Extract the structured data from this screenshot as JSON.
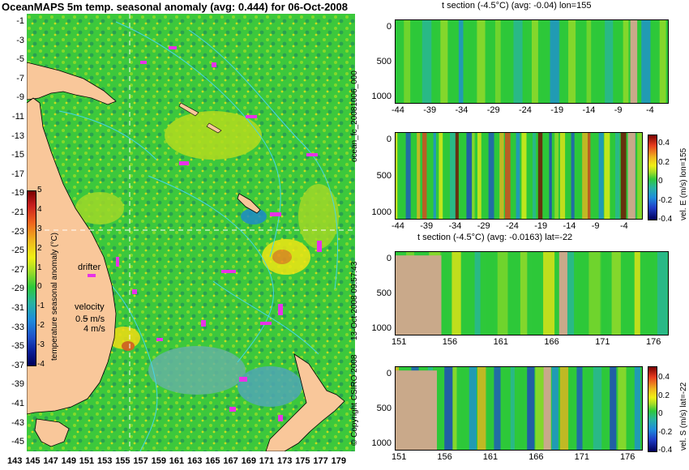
{
  "map": {
    "title": "OceanMAPS 5m temp. seasonal anomaly (avg: 0.444) for 06-Oct-2008",
    "lat_ticks": [
      "-1",
      "-3",
      "-5",
      "-7",
      "-9",
      "-11",
      "-13",
      "-15",
      "-17",
      "-19",
      "-21",
      "-23",
      "-25",
      "-27",
      "-29",
      "-31",
      "-33",
      "-35",
      "-37",
      "-39",
      "-41",
      "-43",
      "-45"
    ],
    "lon_ticks": [
      "143",
      "145",
      "147",
      "149",
      "151",
      "153",
      "155",
      "157",
      "159",
      "161",
      "163",
      "165",
      "167",
      "169",
      "171",
      "173",
      "175",
      "177",
      "179"
    ],
    "colorbar": {
      "label": "temperature seasonal anomaly (°C)",
      "ticks": [
        "5",
        "4",
        "3",
        "2",
        "1",
        "0",
        "-1",
        "-2",
        "-3",
        "-4"
      ]
    },
    "drifter_label": "drifter",
    "velocity_label": "velocity",
    "velocity_scale": "0.5 m/s",
    "velocity_scale2": "4 m/s",
    "colors": {
      "land": "#f9c79a",
      "ocean": "#2ec83a",
      "contour": "#46d6e8",
      "drifter": "#e832e8"
    }
  },
  "panels": [
    {
      "title": "t section (-4.5°C) (avg: -0.04) lon=155",
      "x_ticks": [
        "-44",
        "-39",
        "-34",
        "-29",
        "-24",
        "-19",
        "-14",
        "-9",
        "-4"
      ],
      "y_ticks": [
        "0",
        "500",
        "1000"
      ]
    },
    {
      "title": "",
      "x_ticks": [
        "-44",
        "-39",
        "-34",
        "-29",
        "-24",
        "-19",
        "-14",
        "-9",
        "-4"
      ],
      "y_ticks": [
        "0",
        "500",
        "1000"
      ],
      "side_label": "vel. E (m/s) lon=155",
      "cb_ticks": [
        "0.4",
        "0.2",
        "0",
        "-0.2",
        "-0.4"
      ]
    },
    {
      "title": "t section (-4.5°C) (avg: -0.0163) lat=-22",
      "x_ticks": [
        "151",
        "156",
        "161",
        "166",
        "171",
        "176"
      ],
      "y_ticks": [
        "0",
        "500",
        "1000"
      ]
    },
    {
      "title": "",
      "x_ticks": [
        "151",
        "156",
        "161",
        "166",
        "171",
        "176"
      ],
      "y_ticks": [
        "0",
        "500",
        "1000"
      ],
      "side_label": "vel. S (m/s) lat=-22",
      "cb_ticks": [
        "0.4",
        "0.2",
        "0",
        "-0.2",
        "-0.4"
      ]
    }
  ],
  "vertical_labels": {
    "forecast": "ocean_fc_20081006_000",
    "date": "13-Oct-2008 09:57:43",
    "copyright": "© Copyright CSIRO 2008"
  }
}
